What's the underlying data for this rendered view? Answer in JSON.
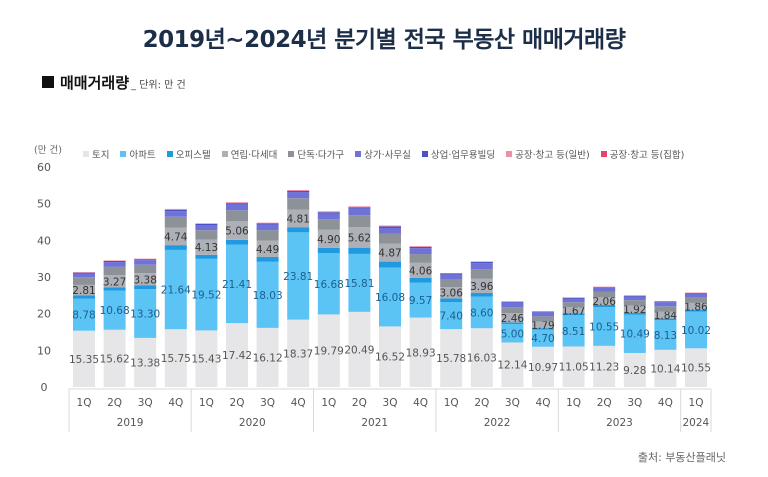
{
  "title": "2019년~2024년 분기별 전국 부동산 매매거래량",
  "subtitle": "매매거래량",
  "unit_note": "_ 단위: 만 건",
  "source": "출처: 부동산플래닛",
  "chart_data": {
    "type": "bar",
    "stacked": true,
    "title": "2019년~2024년 분기별 전국 부동산 매매거래량",
    "ylabel": "(만 건)",
    "xlabel": "",
    "ylim": [
      0,
      60
    ],
    "yticks": [
      0,
      10,
      20,
      30,
      40,
      50,
      60
    ],
    "grid": false,
    "legend_position": "top",
    "categories": [
      "1Q",
      "2Q",
      "3Q",
      "4Q",
      "1Q",
      "2Q",
      "3Q",
      "4Q",
      "1Q",
      "2Q",
      "3Q",
      "4Q",
      "1Q",
      "2Q",
      "3Q",
      "4Q",
      "1Q",
      "2Q",
      "3Q",
      "4Q",
      "1Q"
    ],
    "year_groups": [
      {
        "label": "2019",
        "count": 4
      },
      {
        "label": "2020",
        "count": 4
      },
      {
        "label": "2021",
        "count": 4
      },
      {
        "label": "2022",
        "count": 4
      },
      {
        "label": "2023",
        "count": 4
      },
      {
        "label": "2024",
        "count": 1
      }
    ],
    "series": [
      {
        "name": "토지",
        "color": "#e6e6e8",
        "label_color": "#555555",
        "labeled": true,
        "values": [
          15.35,
          15.62,
          13.38,
          15.75,
          15.43,
          17.42,
          16.12,
          18.37,
          19.79,
          20.49,
          16.52,
          18.93,
          15.78,
          16.03,
          12.14,
          10.97,
          11.05,
          11.23,
          9.28,
          10.14,
          10.55
        ]
      },
      {
        "name": "아파트",
        "color": "#5cc4f5",
        "label_color": "#1b5f8f",
        "labeled": true,
        "values": [
          8.78,
          10.68,
          13.3,
          21.64,
          19.52,
          21.41,
          18.03,
          23.81,
          16.68,
          15.81,
          16.08,
          9.57,
          7.4,
          8.6,
          5.0,
          4.7,
          8.51,
          10.55,
          10.49,
          8.13,
          10.02
        ]
      },
      {
        "name": "오피스텔",
        "color": "#1f9ae0",
        "label_color": "#ffffff",
        "labeled": false,
        "values": [
          0.9,
          0.9,
          1.0,
          1.3,
          1.1,
          1.3,
          1.3,
          1.4,
          1.5,
          1.7,
          1.6,
          1.3,
          1.0,
          1.0,
          0.5,
          0.4,
          0.5,
          0.6,
          0.5,
          0.4,
          0.5
        ]
      },
      {
        "name": "연립·다세대",
        "color": "#adb1b7",
        "label_color": "#333333",
        "labeled": true,
        "values": [
          2.81,
          3.27,
          3.38,
          4.74,
          4.13,
          5.06,
          4.49,
          4.81,
          4.9,
          5.62,
          4.87,
          4.06,
          3.06,
          3.96,
          2.46,
          1.79,
          1.67,
          2.06,
          1.92,
          1.84,
          1.86
        ]
      },
      {
        "name": "단독·다가구",
        "color": "#8d9299",
        "label_color": "#ffffff",
        "labeled": false,
        "values": [
          2.1,
          2.3,
          2.3,
          3.0,
          2.6,
          3.0,
          2.8,
          3.1,
          2.9,
          3.2,
          2.8,
          2.4,
          2.1,
          2.5,
          1.7,
          1.4,
          1.4,
          1.6,
          1.5,
          1.5,
          1.5
        ]
      },
      {
        "name": "상가·사무실",
        "color": "#6f72d6",
        "label_color": "#ffffff",
        "labeled": false,
        "values": [
          1.0,
          1.3,
          1.2,
          1.5,
          1.4,
          1.6,
          1.5,
          1.6,
          1.5,
          1.8,
          1.5,
          1.6,
          1.3,
          1.7,
          1.2,
          1.1,
          1.0,
          1.0,
          1.0,
          1.1,
          1.0
        ]
      },
      {
        "name": "상업·업무용빌딩",
        "color": "#4d51c8",
        "label_color": "#ffffff",
        "labeled": false,
        "values": [
          0.25,
          0.3,
          0.3,
          0.4,
          0.3,
          0.35,
          0.35,
          0.4,
          0.4,
          0.4,
          0.4,
          0.35,
          0.3,
          0.3,
          0.25,
          0.2,
          0.2,
          0.2,
          0.2,
          0.2,
          0.2
        ]
      },
      {
        "name": "공장·창고 등(일반)",
        "color": "#ee8fa6",
        "label_color": "#ffffff",
        "labeled": false,
        "values": [
          0.1,
          0.1,
          0.1,
          0.15,
          0.1,
          0.15,
          0.12,
          0.15,
          0.15,
          0.15,
          0.15,
          0.12,
          0.1,
          0.1,
          0.08,
          0.07,
          0.08,
          0.08,
          0.08,
          0.07,
          0.08
        ]
      },
      {
        "name": "공장·창고 등(집합)",
        "color": "#e5456c",
        "label_color": "#ffffff",
        "labeled": false,
        "values": [
          0.05,
          0.05,
          0.05,
          0.08,
          0.05,
          0.08,
          0.07,
          0.08,
          0.08,
          0.08,
          0.08,
          0.07,
          0.05,
          0.05,
          0.04,
          0.04,
          0.04,
          0.04,
          0.04,
          0.04,
          0.04
        ]
      }
    ]
  }
}
